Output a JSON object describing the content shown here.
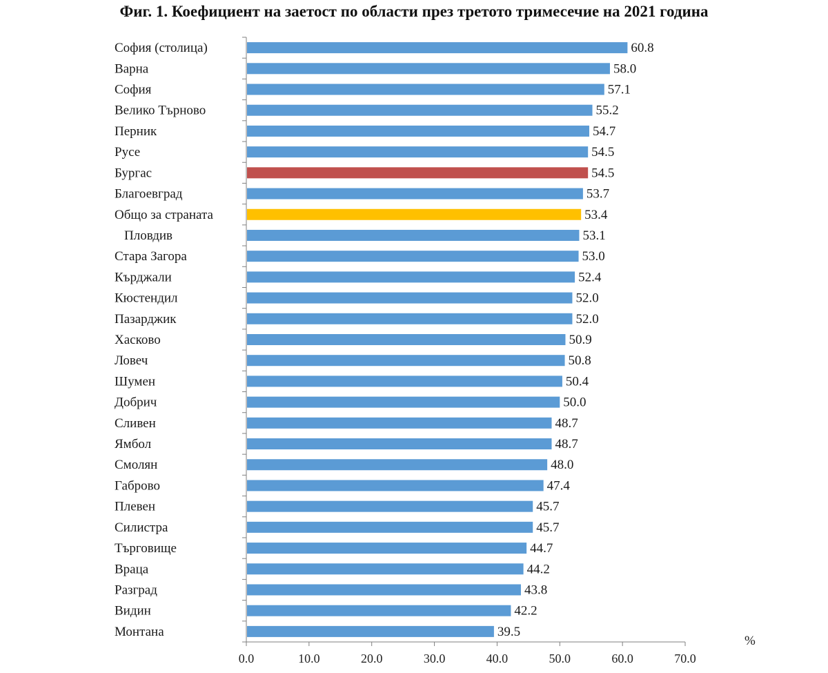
{
  "chart_data": {
    "type": "bar",
    "orientation": "horizontal",
    "title": "Фиг. 1. Коефициент на заетост по области през третото тримесечие на 2021 година",
    "unit_label": "%",
    "categories": [
      "София (столица)",
      "Варна",
      "София",
      "Велико Търново",
      "Перник",
      "Русе",
      "Бургас",
      "Благоевград",
      "Общо за страната",
      "Пловдив",
      "Стара Загора",
      "Кърджали",
      "Кюстендил",
      "Пазарджик",
      "Хасково",
      "Ловеч",
      "Шумен",
      "Добрич",
      "Сливен",
      "Ямбол",
      "Смолян",
      "Габрово",
      "Плевен",
      "Силистра",
      "Търговище",
      "Враца",
      "Разград",
      "Видин",
      "Монтана"
    ],
    "values": [
      60.8,
      58.0,
      57.1,
      55.2,
      54.7,
      54.5,
      54.5,
      53.7,
      53.4,
      53.1,
      53.0,
      52.4,
      52.0,
      52.0,
      50.9,
      50.8,
      50.4,
      50.0,
      48.7,
      48.7,
      48.0,
      47.4,
      45.7,
      45.7,
      44.7,
      44.2,
      43.8,
      42.2,
      39.5
    ],
    "value_labels": [
      "60.8",
      "58.0",
      "57.1",
      "55.2",
      "54.7",
      "54.5",
      "54.5",
      "53.7",
      "53.4",
      "53.1",
      "53.0",
      "52.4",
      "52.0",
      "52.0",
      "50.9",
      "50.8",
      "50.4",
      "50.0",
      "48.7",
      "48.7",
      "48.0",
      "47.4",
      "45.7",
      "45.7",
      "44.7",
      "44.2",
      "43.8",
      "42.2",
      "39.5"
    ],
    "xlim": [
      0,
      70
    ],
    "x_ticks": [
      "0.0",
      "10.0",
      "20.0",
      "30.0",
      "40.0",
      "50.0",
      "60.0",
      "70.0"
    ],
    "grid": false,
    "legend": "none",
    "colors": {
      "default": "#5b9bd5",
      "highlight_region": "#c0504d",
      "country_total": "#ffc000"
    },
    "highlights": {
      "Бургас": "highlight_region",
      "Общо за страната": "country_total"
    }
  }
}
